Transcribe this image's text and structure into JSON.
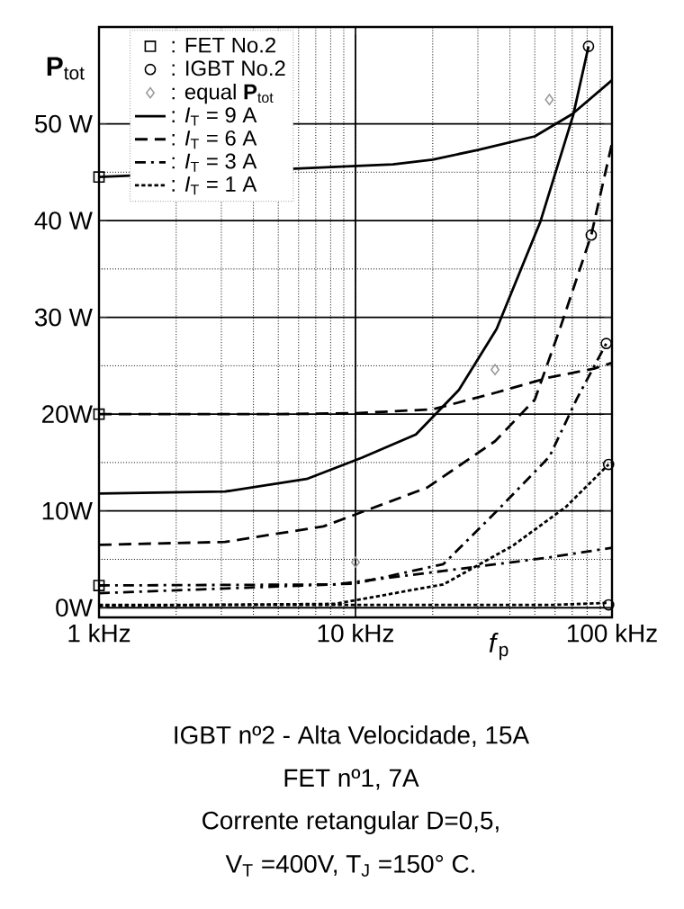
{
  "chart_data": {
    "type": "line",
    "ylabel": "**P**$_{tot}$",
    "xlabel": "*f*$_{p}$",
    "xlim": [
      1,
      100
    ],
    "ylim": [
      -1,
      60
    ],
    "log": "x",
    "grid": true,
    "legend": "top left",
    "xticks": [
      {
        "value": 1,
        "label": "1 kHz"
      },
      {
        "value": 10,
        "label": "10 kHz"
      },
      {
        "value": 100,
        "label": "100 kHz"
      }
    ],
    "yticks": [
      {
        "value": 0,
        "label": "0W"
      },
      {
        "value": 10,
        "label": "10W"
      },
      {
        "value": 20,
        "label": "20W"
      },
      {
        "value": 30,
        "label": "30 W"
      },
      {
        "value": 40,
        "label": "40 W"
      },
      {
        "value": 50,
        "label": "50 W"
      }
    ],
    "series": [
      {
        "type": "scatter",
        "name": ": FET No.2",
        "color": "#000000",
        "marker": "square",
        "x": [
          1,
          1,
          1
        ],
        "values": [
          44.5,
          20,
          2.3
        ]
      },
      {
        "type": "scatter",
        "name": ": IGBT No.2",
        "color": "#000000",
        "marker": "circle",
        "x": [
          81,
          83,
          95,
          97,
          97
        ],
        "values": [
          58,
          38.5,
          27.3,
          14.8,
          0.3
        ]
      },
      {
        "type": "scatter",
        "name": ": equal **P**$_{tot}$",
        "color": "#999999",
        "marker": "diamond",
        "x": [
          57,
          35,
          10
        ],
        "values": [
          52.5,
          24.6,
          4.7
        ]
      },
      {
        "name": ": *I*$_{T}$ = 9 A",
        "color": "#000000",
        "line_style": "solid",
        "x": [
          1,
          14,
          20,
          30,
          50,
          70,
          100
        ],
        "values": [
          44.5,
          45.8,
          46.3,
          47.3,
          48.7,
          51,
          54.5
        ]
      },
      {
        "name": ": *I*$_{T}$ = 6 A",
        "color": "#000000",
        "line_style": "dashed",
        "x": [
          1,
          5,
          10,
          20,
          35,
          57,
          85,
          100
        ],
        "values": [
          20,
          20,
          20.1,
          20.5,
          22.2,
          23.8,
          24.7,
          25.3
        ]
      },
      {
        "name": ": *I*$_{T}$ = 3 A",
        "color": "#000000",
        "line_style": "dashdot",
        "x": [
          1,
          8.3,
          22,
          57,
          100
        ],
        "values": [
          2.3,
          2.4,
          3.8,
          5.2,
          6.2
        ]
      },
      {
        "name": ": *I*$_{T}$ = 1 A",
        "color": "#000000",
        "line_style": "dotted",
        "x": [
          1,
          10,
          30,
          60,
          97
        ],
        "values": [
          0.3,
          0.3,
          0.3,
          0.3,
          0.5
        ]
      },
      {
        "color": "#000000",
        "line_style": "solid",
        "x": [
          1,
          3.1,
          6.45,
          10.6,
          17.2,
          25.3,
          35.5,
          52.6,
          70.6,
          81
        ],
        "values": [
          11.8,
          12,
          13.3,
          15.5,
          17.9,
          22.5,
          28.8,
          39.9,
          50.9,
          58
        ]
      },
      {
        "color": "#000000",
        "line_style": "dashed",
        "x": [
          1,
          3.1,
          7.5,
          19,
          35,
          50,
          63,
          83,
          100
        ],
        "values": [
          6.5,
          6.8,
          8.4,
          12.4,
          17.2,
          21.5,
          29,
          38.5,
          48
        ]
      },
      {
        "color": "#000000",
        "line_style": "dashdot",
        "x": [
          1,
          10,
          22,
          35,
          57,
          73,
          95
        ],
        "values": [
          1.5,
          2.5,
          4.5,
          9.8,
          15.6,
          21.6,
          27.3
        ]
      },
      {
        "color": "#000000",
        "line_style": "dotted",
        "x": [
          1,
          8.3,
          22,
          41,
          66,
          97
        ],
        "values": [
          0.2,
          0.4,
          2.4,
          6.4,
          10.4,
          14.8
        ]
      }
    ],
    "annotations": [
      "IGBT nº2 - Alta Velocidade, 15A",
      "FET nº1, 7A",
      "Corrente retangular  D=0,5,",
      "V$_{T}$ =400V, T$_{J}$ =150° C."
    ]
  }
}
